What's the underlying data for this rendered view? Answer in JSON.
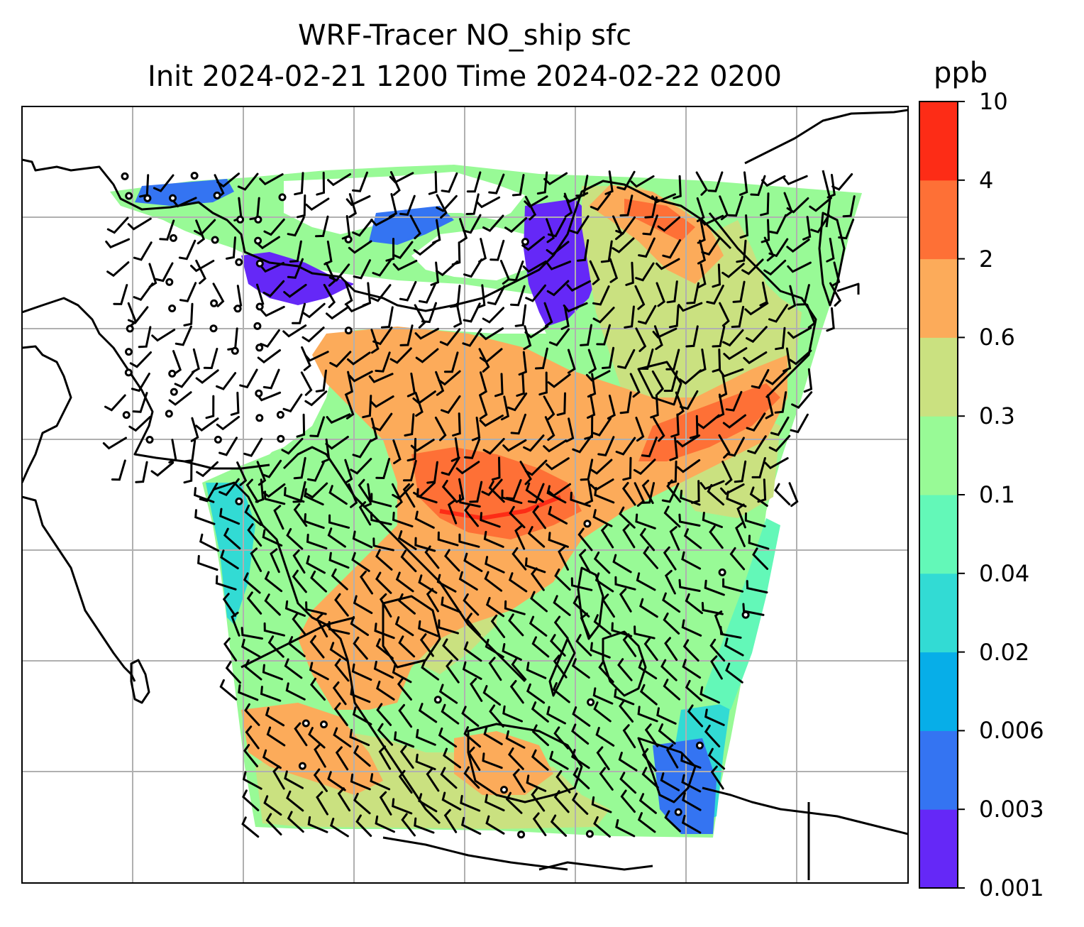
{
  "title": {
    "line1": "WRF-Tracer NO_ship sfc",
    "line2": "Init 2024-02-21 1200 Time 2024-02-22 0200"
  },
  "colorbar": {
    "unit": "ppb",
    "levels": [
      "0.001",
      "0.003",
      "0.006",
      "0.02",
      "0.04",
      "0.1",
      "0.3",
      "0.6",
      "2",
      "4",
      "10"
    ],
    "colors": [
      "#6528f7",
      "#3474f2",
      "#07aee8",
      "#32dbd4",
      "#63f8b8",
      "#98fa96",
      "#cae180",
      "#fcab5a",
      "#fe7036",
      "#fd2c16"
    ]
  },
  "map": {
    "gridlines": "on",
    "overlays": [
      "coastlines",
      "wind-barbs",
      "calm-circles"
    ]
  }
}
